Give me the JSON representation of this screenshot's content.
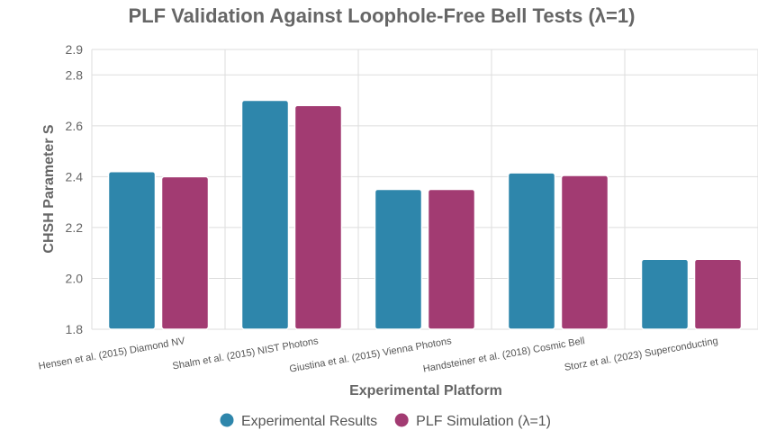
{
  "chart_data": {
    "type": "bar",
    "title": "PLF Validation Against Loophole-Free Bell Tests (λ=1)",
    "xlabel": "Experimental Platform",
    "ylabel": "CHSH Parameter S",
    "ylim": [
      1.8,
      2.9
    ],
    "yticks": [
      "1.8",
      "2.0",
      "2.2",
      "2.4",
      "2.6",
      "2.8",
      "2.9"
    ],
    "grid": true,
    "legend_position": "bottom",
    "categories": [
      "Hensen et al. (2015) Diamond NV",
      "Shalm et al. (2015) NIST Photons",
      "Giustina et al. (2015) Vienna Photons",
      "Handsteiner et al. (2018) Cosmic Bell",
      "Storz et al. (2023) Superconducting"
    ],
    "series": [
      {
        "name": "Experimental Results",
        "color": "#2e86ab",
        "values": [
          2.42,
          2.7,
          2.35,
          2.415,
          2.075
        ]
      },
      {
        "name": "PLF Simulation (λ=1)",
        "color": "#a23b72",
        "values": [
          2.4,
          2.68,
          2.35,
          2.405,
          2.075
        ]
      }
    ]
  }
}
